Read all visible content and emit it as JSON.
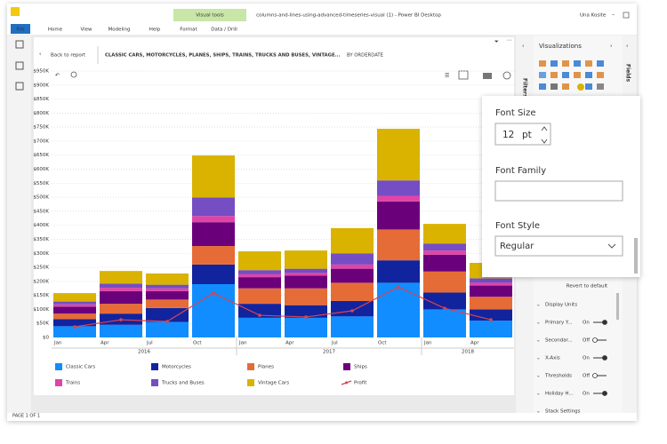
{
  "window": {
    "title": "columns-and-lines-using-advanced-timeseries-visual (1) - Power BI Desktop",
    "user": "Una Kosite",
    "contextual_tab_group": "Visual tools"
  },
  "ribbon": {
    "tabs": [
      "File",
      "Home",
      "View",
      "Modeling",
      "Help",
      "Format",
      "Data / Drill"
    ]
  },
  "report_header": {
    "back": "Back to report",
    "title": "CLASSIC CARS, MOTORCYCLES, PLANES, SHIPS, TRAINS, TRUCKS AND BUSES, VINTAGE...",
    "subtitle": "BY ORDERDATE"
  },
  "panes": {
    "filters": "Filters",
    "visualizations": "Visualizations",
    "fields": "Fields"
  },
  "chart_data": {
    "type": "bar",
    "stacked": true,
    "grid": true,
    "categories": [
      "Jan",
      "Apr",
      "Jul",
      "Oct",
      "Jan",
      "Apr",
      "Jul",
      "Oct",
      "Jan",
      "Apr"
    ],
    "category_groups": [
      {
        "label": "2016",
        "count": 4
      },
      {
        "label": "2017",
        "count": 4
      },
      {
        "label": "2018",
        "count": 2
      }
    ],
    "ylim": [
      0,
      950000
    ],
    "yticks": [
      {
        "value": 0,
        "label": "$0"
      },
      {
        "value": 50000,
        "label": "$50K"
      },
      {
        "value": 100000,
        "label": "$100K"
      },
      {
        "value": 150000,
        "label": "$150K"
      },
      {
        "value": 200000,
        "label": "$200K"
      },
      {
        "value": 250000,
        "label": "$250K"
      },
      {
        "value": 300000,
        "label": "$300K"
      },
      {
        "value": 350000,
        "label": "$350K"
      },
      {
        "value": 400000,
        "label": "$400K"
      },
      {
        "value": 450000,
        "label": "$450K"
      },
      {
        "value": 500000,
        "label": "$500K"
      },
      {
        "value": 550000,
        "label": "$550K"
      },
      {
        "value": 600000,
        "label": "$600K"
      },
      {
        "value": 650000,
        "label": "$650K"
      },
      {
        "value": 700000,
        "label": "$700K"
      },
      {
        "value": 750000,
        "label": "$750K"
      },
      {
        "value": 800000,
        "label": "$800K"
      },
      {
        "value": 850000,
        "label": "$850K"
      },
      {
        "value": 900000,
        "label": "$900K"
      },
      {
        "value": 950000,
        "label": "$950K"
      }
    ],
    "series": [
      {
        "name": "Classic Cars",
        "color": "#118dff",
        "values": [
          40000,
          45000,
          55000,
          190000,
          70000,
          70000,
          75000,
          195000,
          100000,
          60000
        ]
      },
      {
        "name": "Motorcycles",
        "color": "#12239e",
        "values": [
          25000,
          40000,
          50000,
          70000,
          50000,
          45000,
          55000,
          80000,
          60000,
          40000
        ]
      },
      {
        "name": "Planes",
        "color": "#e66c37",
        "values": [
          20000,
          35000,
          30000,
          66000,
          55000,
          60000,
          65000,
          110000,
          75000,
          45000
        ]
      },
      {
        "name": "Ships",
        "color": "#6b007b",
        "values": [
          25000,
          45000,
          30000,
          85000,
          40000,
          45000,
          50000,
          100000,
          60000,
          40000
        ]
      },
      {
        "name": "Trains",
        "color": "#e044a7",
        "values": [
          8000,
          12000,
          10000,
          22000,
          10000,
          10000,
          15000,
          20000,
          15000,
          10000
        ]
      },
      {
        "name": "Trucks and Buses",
        "color": "#744ec2",
        "values": [
          10000,
          15000,
          13000,
          66000,
          15000,
          15000,
          40000,
          55000,
          25000,
          16000
        ]
      },
      {
        "name": "Vintage Cars",
        "color": "#d9b300",
        "values": [
          30000,
          45000,
          40000,
          150000,
          67000,
          65000,
          90000,
          184000,
          70000,
          55000
        ]
      },
      {
        "name": "Profit",
        "color": "#d64550",
        "type": "line",
        "values": [
          38000,
          63000,
          57000,
          158000,
          79000,
          73000,
          95000,
          180000,
          104000,
          63000
        ]
      }
    ]
  },
  "format_popup": {
    "font_size_label": "Font Size",
    "font_size": 12,
    "font_size_unit": "pt",
    "font_family_label": "Font Family",
    "font_style_label": "Font Style",
    "font_style": "Regular"
  },
  "format_settings": {
    "revert": "Revert to default",
    "items": [
      {
        "label": "Display Units"
      },
      {
        "label": "Primary Y...",
        "state": "On"
      },
      {
        "label": "Secondar...",
        "state": "Off"
      },
      {
        "label": "X-Axis",
        "state": "On"
      },
      {
        "label": "Thresholds",
        "state": "Off"
      },
      {
        "label": "Holiday H...",
        "state": "On"
      },
      {
        "label": "Stack Settings"
      }
    ]
  },
  "status": {
    "page": "PAGE 1 OF 1"
  }
}
